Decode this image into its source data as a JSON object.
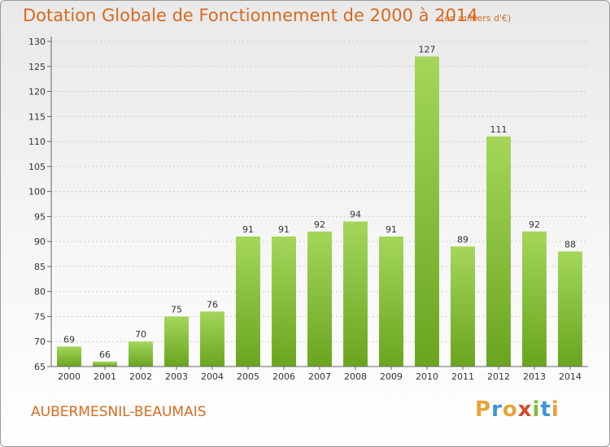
{
  "title": "Dotation Globale de Fonctionnement de 2000 à 2014",
  "subtitle": "(en milliers d'€)",
  "commune": "AUBERMESNIL-BEAUMAIS",
  "logo": {
    "letters": [
      "P",
      "r",
      "o",
      "x",
      "i",
      "t",
      "i"
    ],
    "colors": [
      "#e8a33a",
      "#3f95d4",
      "#e8a33a",
      "#d64b2a",
      "#7fbf3a",
      "#3f95d4",
      "#e8a33a"
    ]
  },
  "colors": {
    "text_accent": "#d86a1e",
    "bar_light": "#a4d65a",
    "bar_dark": "#6aa51f",
    "axis": "#666666",
    "grid": "#cccccc"
  },
  "chart_data": {
    "type": "bar",
    "categories": [
      "2000",
      "2001",
      "2002",
      "2003",
      "2004",
      "2005",
      "2006",
      "2007",
      "2008",
      "2009",
      "2010",
      "2011",
      "2012",
      "2013",
      "2014"
    ],
    "values": [
      69,
      66,
      70,
      75,
      76,
      91,
      91,
      92,
      94,
      91,
      127,
      89,
      111,
      92,
      88
    ],
    "ylim": [
      65,
      130
    ],
    "yticks": [
      65,
      70,
      75,
      80,
      85,
      90,
      95,
      100,
      105,
      110,
      115,
      120,
      125,
      130
    ],
    "grid": true,
    "legend": "none"
  }
}
